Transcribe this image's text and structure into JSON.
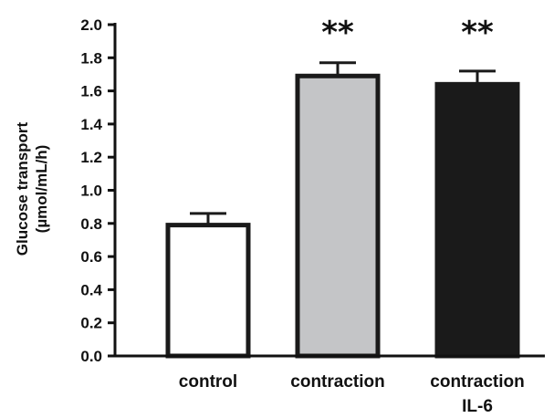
{
  "chart_data": {
    "type": "bar",
    "categories": [
      "control",
      "contraction",
      "contraction"
    ],
    "category_sublabels": [
      "",
      "",
      "IL-6"
    ],
    "values": [
      0.79,
      1.69,
      1.64
    ],
    "errors": [
      0.07,
      0.08,
      0.08
    ],
    "significance": [
      "",
      "**",
      "**"
    ],
    "bar_colors": [
      "#ffffff",
      "#c4c5c7",
      "#1a1a1a"
    ],
    "edge_color": "#1a1a1a",
    "xlabel": "",
    "ylabel": [
      "Glucose transport",
      "(µmol/mL/h)"
    ],
    "ylim": [
      0,
      2.0
    ],
    "yticks": [
      "0.0",
      "0.2",
      "0.4",
      "0.6",
      "0.8",
      "1.0",
      "1.2",
      "1.4",
      "1.6",
      "1.8",
      "2.0"
    ],
    "grid": false
  }
}
